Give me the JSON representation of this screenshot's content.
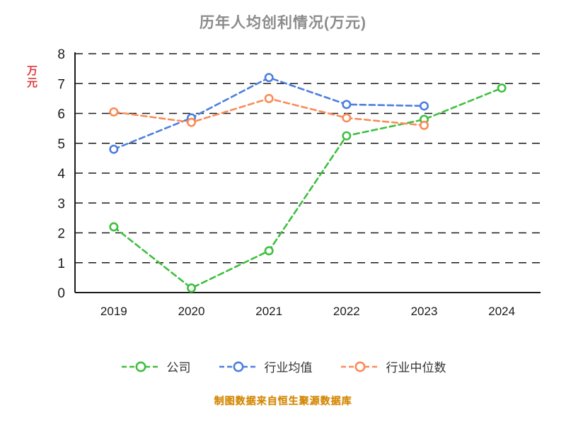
{
  "title": "历年人均创利情况(万元)",
  "footer": "制图数据来自恒生聚源数据库",
  "colors": {
    "title": "#8c8c8c",
    "ylabel": "#e03a3c",
    "footer": "#d48806",
    "axis": "#1a1a1a",
    "company": "#3fbf3f",
    "industry_avg": "#4d7fdd",
    "industry_median": "#fb8b57"
  },
  "chart_data": {
    "type": "line",
    "title": "历年人均创利情况(万元)",
    "xlabel": "",
    "ylabel": "万元",
    "categories": [
      "2019",
      "2020",
      "2021",
      "2022",
      "2023",
      "2024"
    ],
    "ylim": [
      0,
      8
    ],
    "yticks": [
      0,
      1,
      2,
      3,
      4,
      5,
      6,
      7,
      8
    ],
    "grid": "horizontal-dashed",
    "line_style": "dashed",
    "legend_position": "bottom",
    "series": [
      {
        "id": "company",
        "name": "公司",
        "color": "#3fbf3f",
        "values": [
          2.2,
          0.15,
          1.4,
          5.25,
          5.8,
          6.85
        ]
      },
      {
        "id": "industry-avg",
        "name": "行业均值",
        "color": "#4d7fdd",
        "values": [
          4.8,
          5.85,
          7.2,
          6.3,
          6.25,
          null
        ]
      },
      {
        "id": "industry-median",
        "name": "行业中位数",
        "color": "#fb8b57",
        "values": [
          6.05,
          5.7,
          6.5,
          5.85,
          5.6,
          null
        ]
      }
    ]
  }
}
